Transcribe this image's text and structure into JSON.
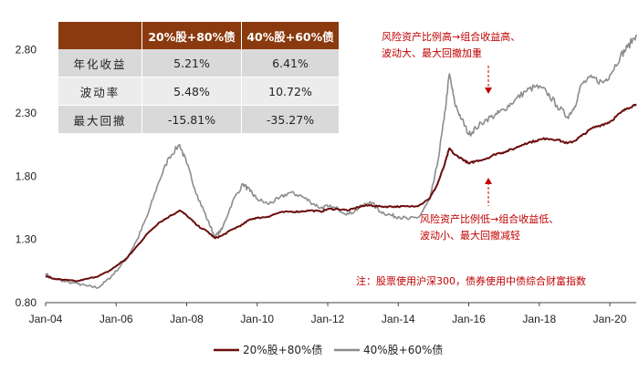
{
  "table": {
    "headers": [
      "",
      "20%股+80%债",
      "40%股+60%债"
    ],
    "rows": [
      [
        "年化收益",
        "5.21%",
        "6.41%"
      ],
      [
        "波动率",
        "5.48%",
        "10.72%"
      ],
      [
        "最大回撤",
        "-15.81%",
        "-35.27%"
      ]
    ]
  },
  "annotations": {
    "top": [
      "风险资产比例高→组合收益高、",
      "波动大、最大回撤加重"
    ],
    "bottom": [
      "风险资产比例低→组合收益低、",
      "波动小、最大回撤减轻"
    ],
    "note": "注：股票使用沪深300，债券使用中债综合财富指数"
  },
  "colors": {
    "series1": "#6b0c0c",
    "series2": "#8c8c8c",
    "table_header": "#8b3a0f",
    "annotation": "#c00000"
  },
  "chart_data": {
    "type": "line",
    "xlim": [
      2004.0,
      2020.75
    ],
    "ylim": [
      0.8,
      3.05
    ],
    "y_ticks": [
      0.8,
      1.3,
      1.8,
      2.3,
      2.8
    ],
    "y_tick_labels": [
      "0.80",
      "1.30",
      "1.80",
      "2.30",
      "2.80"
    ],
    "x_ticks": [
      2004,
      2006,
      2008,
      2010,
      2012,
      2014,
      2016,
      2018,
      2020
    ],
    "x_tick_labels": [
      "Jan-04",
      "Jan-06",
      "Jan-08",
      "Jan-10",
      "Jan-12",
      "Jan-14",
      "Jan-16",
      "Jan-18",
      "Jan-20"
    ],
    "legend_position": "bottom-center",
    "series": [
      {
        "name": "20%股+80%债",
        "x": [
          2004.0,
          2004.2,
          2004.5,
          2004.9,
          2005.2,
          2005.5,
          2005.8,
          2006.0,
          2006.3,
          2006.6,
          2006.9,
          2007.2,
          2007.5,
          2007.8,
          2008.0,
          2008.3,
          2008.6,
          2008.8,
          2009.0,
          2009.3,
          2009.6,
          2009.8,
          2010.0,
          2010.3,
          2010.6,
          2010.9,
          2011.2,
          2011.5,
          2011.8,
          2012.0,
          2012.3,
          2012.6,
          2012.9,
          2013.2,
          2013.5,
          2013.8,
          2014.0,
          2014.3,
          2014.6,
          2014.9,
          2015.1,
          2015.3,
          2015.45,
          2015.6,
          2015.8,
          2016.0,
          2016.2,
          2016.5,
          2016.8,
          2017.0,
          2017.3,
          2017.6,
          2017.9,
          2018.2,
          2018.5,
          2018.8,
          2019.0,
          2019.2,
          2019.5,
          2019.8,
          2020.0,
          2020.3,
          2020.5,
          2020.75
        ],
        "values": [
          1.01,
          0.99,
          0.98,
          0.97,
          0.99,
          1.01,
          1.05,
          1.09,
          1.15,
          1.25,
          1.35,
          1.43,
          1.48,
          1.53,
          1.49,
          1.41,
          1.36,
          1.31,
          1.33,
          1.38,
          1.42,
          1.46,
          1.47,
          1.48,
          1.51,
          1.52,
          1.52,
          1.53,
          1.52,
          1.54,
          1.54,
          1.53,
          1.56,
          1.57,
          1.56,
          1.56,
          1.56,
          1.56,
          1.57,
          1.63,
          1.73,
          1.88,
          2.02,
          1.97,
          1.94,
          1.9,
          1.92,
          1.94,
          1.98,
          1.99,
          2.02,
          2.06,
          2.08,
          2.1,
          2.09,
          2.06,
          2.08,
          2.12,
          2.18,
          2.21,
          2.23,
          2.3,
          2.34,
          2.37
        ]
      },
      {
        "name": "40%股+60%债",
        "x": [
          2004.0,
          2004.2,
          2004.5,
          2004.9,
          2005.2,
          2005.5,
          2005.8,
          2006.0,
          2006.3,
          2006.6,
          2006.9,
          2007.2,
          2007.5,
          2007.8,
          2008.0,
          2008.3,
          2008.6,
          2008.8,
          2009.0,
          2009.3,
          2009.6,
          2009.8,
          2010.0,
          2010.3,
          2010.6,
          2010.9,
          2011.2,
          2011.5,
          2011.8,
          2012.0,
          2012.3,
          2012.6,
          2012.9,
          2013.2,
          2013.5,
          2013.8,
          2014.0,
          2014.3,
          2014.6,
          2014.9,
          2015.1,
          2015.3,
          2015.45,
          2015.6,
          2015.8,
          2016.0,
          2016.2,
          2016.5,
          2016.8,
          2017.0,
          2017.3,
          2017.6,
          2017.9,
          2018.2,
          2018.5,
          2018.8,
          2019.0,
          2019.2,
          2019.5,
          2019.8,
          2020.0,
          2020.3,
          2020.5,
          2020.75
        ],
        "values": [
          1.03,
          0.99,
          0.97,
          0.95,
          0.93,
          0.92,
          0.99,
          1.05,
          1.15,
          1.3,
          1.5,
          1.75,
          1.95,
          2.05,
          1.9,
          1.65,
          1.45,
          1.32,
          1.38,
          1.6,
          1.74,
          1.68,
          1.62,
          1.58,
          1.62,
          1.67,
          1.65,
          1.6,
          1.55,
          1.56,
          1.54,
          1.5,
          1.55,
          1.6,
          1.52,
          1.49,
          1.48,
          1.46,
          1.48,
          1.62,
          1.88,
          2.25,
          2.61,
          2.38,
          2.25,
          2.13,
          2.18,
          2.25,
          2.29,
          2.33,
          2.4,
          2.47,
          2.51,
          2.47,
          2.36,
          2.27,
          2.35,
          2.53,
          2.58,
          2.54,
          2.6,
          2.75,
          2.82,
          2.92
        ]
      }
    ]
  }
}
